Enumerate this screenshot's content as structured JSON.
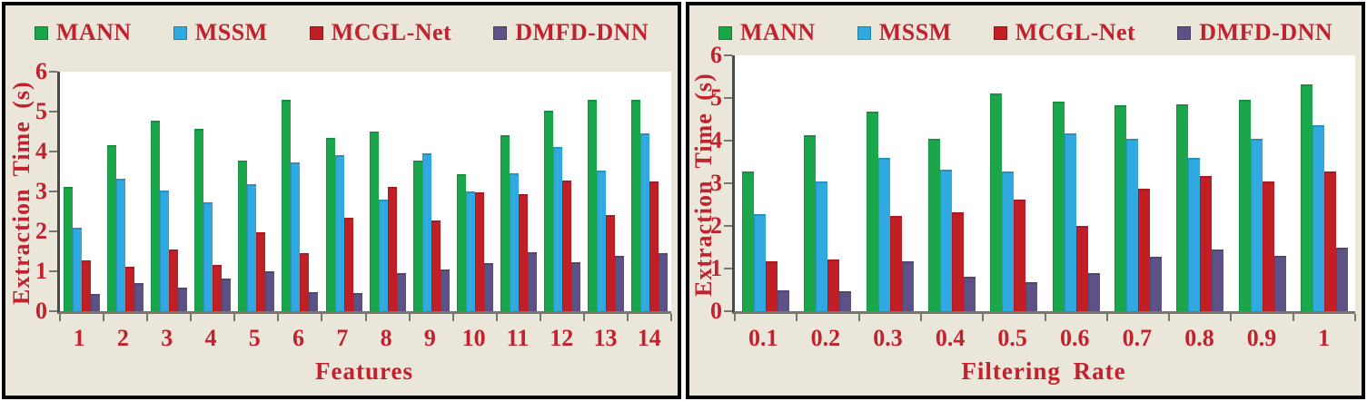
{
  "style": {
    "text_color": "#C2212E",
    "panel_background": "#EAE6D9",
    "plot_background": "#FFFFFF",
    "axis_color": "#4A4A4A",
    "tick_color": "#77776F",
    "border_color": "#000000"
  },
  "chart_data": [
    {
      "type": "bar",
      "xlabel": "Features",
      "ylabel": "Extraction Time (s)",
      "ylim": [
        0,
        6
      ],
      "yticks": [
        0,
        1,
        2,
        3,
        4,
        5,
        6
      ],
      "grid": false,
      "legend_position": "top",
      "categories": [
        "1",
        "2",
        "3",
        "4",
        "5",
        "6",
        "7",
        "8",
        "9",
        "10",
        "11",
        "12",
        "13",
        "14"
      ],
      "series": [
        {
          "name": "MANN",
          "color": "#1BA64B",
          "values": [
            3.12,
            4.15,
            4.78,
            4.57,
            3.77,
            5.3,
            4.33,
            4.5,
            3.78,
            3.43,
            4.4,
            5.02,
            5.3,
            5.3
          ]
        },
        {
          "name": "MSSM",
          "color": "#2FA9E0",
          "values": [
            2.1,
            3.32,
            3.02,
            2.72,
            3.18,
            3.73,
            3.9,
            2.8,
            3.95,
            3.01,
            3.46,
            4.11,
            3.53,
            4.46
          ]
        },
        {
          "name": "MCGL-Net",
          "color": "#C21E26",
          "values": [
            1.27,
            1.12,
            1.55,
            1.16,
            1.97,
            1.45,
            2.33,
            3.12,
            2.27,
            2.97,
            2.94,
            3.28,
            2.42,
            3.25
          ]
        },
        {
          "name": "DMFD-DNN",
          "color": "#5E5186",
          "values": [
            0.43,
            0.71,
            0.6,
            0.81,
            1.01,
            0.48,
            0.45,
            0.95,
            1.05,
            1.2,
            1.48,
            1.22,
            1.38,
            1.45
          ]
        }
      ]
    },
    {
      "type": "bar",
      "xlabel": "Filtering Rate",
      "ylabel": "Extraction Time (s)",
      "ylim": [
        0,
        6
      ],
      "yticks": [
        0,
        1,
        2,
        3,
        4,
        5,
        6
      ],
      "grid": false,
      "legend_position": "top",
      "categories": [
        "0.1",
        "0.2",
        "0.3",
        "0.4",
        "0.5",
        "0.6",
        "0.7",
        "0.8",
        "0.9",
        "1"
      ],
      "series": [
        {
          "name": "MANN",
          "color": "#1BA64B",
          "values": [
            3.28,
            4.13,
            4.69,
            4.05,
            5.11,
            4.91,
            4.84,
            4.85,
            4.95,
            5.32
          ]
        },
        {
          "name": "MSSM",
          "color": "#2FA9E0",
          "values": [
            2.27,
            3.05,
            3.6,
            3.32,
            3.28,
            4.16,
            4.05,
            3.6,
            4.04,
            4.37
          ]
        },
        {
          "name": "MCGL-Net",
          "color": "#C21E26",
          "values": [
            1.18,
            1.21,
            2.24,
            2.32,
            2.61,
            2.0,
            2.88,
            3.17,
            3.04,
            3.28
          ]
        },
        {
          "name": "DMFD-DNN",
          "color": "#5E5186",
          "values": [
            0.5,
            0.46,
            1.18,
            0.8,
            0.69,
            0.9,
            1.27,
            1.44,
            1.3,
            1.5
          ]
        }
      ]
    }
  ]
}
